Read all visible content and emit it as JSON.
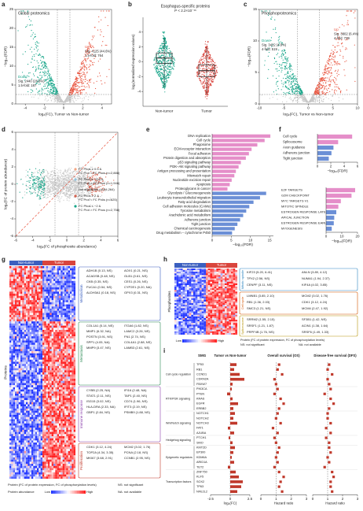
{
  "panels": {
    "a": {
      "label": "a",
      "title": "Global proteomics",
      "up": "Up",
      "up_sig": "Sig. 4125 (44.6%)",
      "up_fold": "1.5-fold: 764",
      "down": "Down",
      "down_sig": "Sig. 2440 (26.8%)",
      "down_fold": "1.5-fold: 187",
      "xlabel": "log₂(FC), Tumor vs Non-tumor",
      "ylabel": "−log₁₀(FDR)",
      "xlim": [
        -5,
        5
      ],
      "xticks": [
        -4,
        -2,
        0,
        2,
        4
      ],
      "ylim": [
        0,
        25
      ],
      "yticks": [
        0,
        5,
        10,
        15,
        20,
        25
      ]
    },
    "b": {
      "label": "b",
      "title": "Esophagus-specific proteins",
      "pvalue": "P < 2.2×10⁻¹⁶",
      "ylabel": "log₂(normalized expression values)",
      "categories": [
        "Non-tumor",
        "Tumor"
      ],
      "colors": [
        "#17a589",
        "#d9453d"
      ],
      "ylim": [
        -6,
        6
      ],
      "yticks": [
        -4,
        -2,
        0,
        2,
        4
      ],
      "boxes": [
        {
          "min": -3.4,
          "q1": -0.2,
          "median": 0.5,
          "q3": 1.2,
          "max": 3.2
        },
        {
          "min": -4.4,
          "q1": -2,
          "median": -1.2,
          "q3": -0.4,
          "max": 2
        }
      ]
    },
    "c": {
      "label": "c",
      "title": "Phosphoproteomics",
      "up": "Up",
      "up_sig": "Sig. 3802 (6.4%)",
      "up_fold": "4-fold: 739",
      "down": "Down",
      "down_sig": "Sig. 3422 (4.8%)",
      "down_fold": "4-fold: 519",
      "xlabel": "log₂(FC), Tumor vs Non-tumor",
      "ylabel": "−log₁₀(FDR)",
      "xlim": [
        -10,
        10
      ],
      "xticks": [
        -10,
        -5,
        0,
        5,
        10
      ],
      "ylim": [
        0,
        15
      ],
      "yticks": [
        0,
        5,
        10,
        15
      ]
    },
    "d": {
      "label": "d",
      "xlabel": "log₂(FC of phosphosite abundance)",
      "ylabel": "log₂(FC of protein abundance)",
      "xlim": [
        -6,
        6
      ],
      "xticks": [
        -6,
        -4,
        -2,
        0,
        2,
        4,
        6
      ],
      "ylim": [
        -6,
        6
      ],
      "yticks": [
        -6,
        -4,
        -2,
        0,
        2,
        4,
        6
      ],
      "legend": [
        {
          "color": "#f4a582",
          "lines": [
            "FC Phos ≥ 0.5 &",
            "FC Prot < FC Phos (n=2,888)"
          ]
        },
        {
          "color": "#92c5de",
          "lines": [
            "FC Phos ≤ −0.5 &",
            "FC Prot > FC Phos (n=1,946)"
          ]
        },
        {
          "color": "#cccccc",
          "lines": [
            "Not significant (n=54,264)"
          ]
        },
        {
          "color": "#d6604d",
          "lines": [
            "FC Phos ≥ 2 &",
            "FC Prot < FC Phos (n=625)"
          ]
        },
        {
          "color": "#17a589",
          "lines": [
            "FC Phos ≤ −2 &",
            "FC Prot > FC Phos (n=2,758)"
          ]
        }
      ]
    },
    "e": {
      "label": "e",
      "xlabel": "−log₁₀(FDR)",
      "xlim": [
        0,
        16
      ],
      "xticks": [
        0,
        5,
        10,
        15
      ],
      "groups": [
        {
          "color": "#e58ec9",
          "categories": [
            "DNA replication",
            "Cell cycle",
            "Phagosome",
            "ECM-receptor interaction",
            "Focal adhesion",
            "Protein digestion and absorption",
            "p53 signaling pathway",
            "PI3K–Akt signaling pathway",
            "Antigen processing and presentation",
            "Mismatch repair",
            "Nucleotide excision repair",
            "Apoptosis",
            "Proteoglycans in cancer"
          ],
          "values": [
            15.2,
            13.7,
            11.8,
            10.3,
            9.6,
            8.8,
            7.5,
            6.9,
            6.2,
            5.8,
            5.1,
            4.6,
            4.0
          ]
        },
        {
          "color": "#6b8fd6",
          "categories": [
            "Glycolysis / Gluconeogenesis",
            "Leukocyte transendothelial migration",
            "Fatty acid degradation",
            "Cell adhesion molecules (CAMs)",
            "Tyrosine metabolism",
            "Arachidonic acid metabolism",
            "Adherens junction",
            "Tight junction",
            "Chemical carcinogenesis",
            "Drug metabolism − cytochrome P450"
          ],
          "values": [
            14.1,
            12.5,
            10.8,
            9.7,
            8.9,
            8.1,
            7.3,
            6.6,
            5.9,
            5.2
          ]
        }
      ]
    },
    "f": {
      "label": "f",
      "top": {
        "xlabel": "−log₁₀(FDR)",
        "xlim": [
          0,
          6
        ],
        "xticks": [
          0,
          2,
          4,
          6
        ],
        "groups": [
          {
            "color": "#e58ec9",
            "categories": [
              "Cell cycle",
              "Spliceosome"
            ],
            "values": [
              5.2,
              3.1
            ]
          },
          {
            "color": "#6b8fd6",
            "categories": [
              "Axon guidance",
              "Adherens junction",
              "Tight junction"
            ],
            "values": [
              2.4,
              2.1,
              1.7
            ]
          }
        ]
      },
      "bottom": {
        "xlabel": "−log₁₀(FDR)",
        "xlim": [
          0,
          20
        ],
        "xticks": [
          0,
          10,
          20
        ],
        "groups": [
          {
            "color": "#e58ec9",
            "categories": [
              "E2F TARGETS",
              "G2M CHECKPOINT",
              "MYC TARGETS V1",
              "MITOTIC SPINDLE"
            ],
            "values": [
              18.5,
              16.2,
              9.4,
              7.8
            ]
          },
          {
            "color": "#6b8fd6",
            "categories": [
              "ESTROGEN RESPONSE LATE",
              "APICAL JUNCTION",
              "ESTROGEN RESPONSE EARLY",
              "MYOGENESIS"
            ],
            "values": [
              6.5,
              5.2,
              4.9,
              3.6
            ]
          }
        ]
      }
    },
    "g": {
      "label": "g",
      "header": [
        "Non-tumor",
        "Tumor"
      ],
      "ylabel": "Proteins",
      "groups": [
        {
          "name": "Metabolism",
          "color": "#3b5fbf",
          "genes": [
            "ADH1B (0.13, NS)",
            "AOX1 (0.21, NS)",
            "ACADSB (0.48, NS)",
            "GLB1 (0.61, NS)",
            "CKB (0.35, NS)",
            "CES1 (0.26, NS)",
            "FUCA1 (0.54, NS)",
            "CYP2E1 (0.20, NA)",
            "ALDH3A1 (0.18, NS)",
            "GPX3 (0.31, NS)"
          ]
        },
        {
          "name": "Metastasis",
          "color": "#2e8b57",
          "genes": [
            "COL1A1 (5.14, NS)",
            "ITGA6 (1.82, NS)",
            "MMP1 (6.32, NA)",
            "LAMC2 (3.26, NS)",
            "POSTN (3.91, NS)",
            "FN1 (2.74, NS)",
            "SPP1 (4.05, NA)",
            "COL4A1 (2.88, NS)",
            "MMP9 (3.47, NS)",
            "LAMB3 (2.61, NS)"
          ]
        },
        {
          "name": "Immune response",
          "color": "#8e44ad",
          "genes": [
            "CYBB (2.25, NA)",
            "IFI16 (2.48, NA)",
            "STAT1 (2.11, NS)",
            "TAP1 (2.40, NS)",
            "ISG15 (3.02, NS)",
            "CD74 (1.96, NS)",
            "HLA-DRA (2.33, NA)",
            "IFIT3 (2.19, NS)",
            "GBP1 (2.84, NS)",
            "PSMB9 (1.88, NS)"
          ]
        },
        {
          "name": "Proliferation",
          "color": "#c0392b",
          "genes": [
            "CDK1 (3.12, 4.24)",
            "MCM2 (3.02, 1.76)",
            "TOP2A (4.34, 3.35)",
            "PCNA (2.18, NS)",
            "MKI67 (3.68, 2.91)",
            "CCNB1 (2.95, NS)"
          ]
        }
      ],
      "legend_protein": "Protein (FC of protein expression, FC of phosphorylation levels)",
      "legend_ns": "NS: not significant",
      "legend_abundance": "Protein abundance",
      "low": "Low",
      "high": "High",
      "legend_na": "NA: not available"
    },
    "h": {
      "label": "h",
      "header": [
        "Non-tumor",
        "Tumor"
      ],
      "ylabel": "Phosphosites",
      "groups": [
        {
          "name": "Mitotic spindle",
          "color": "#2e86c1",
          "genes": [
            "KIF23 (5.20, 6.41)",
            "ANLN (3.89, 4.12)",
            "TPX2 (2.56, NS)",
            "NUMA1 (1.94, 2.37)",
            "CENPF (3.11, NS)",
            "KIF4A (4.02, 3.85)"
          ]
        },
        {
          "name": "Cell cycle",
          "color": "#d35400",
          "genes": [
            "LMNB1 (3.85, 2.10)",
            "MCM2 (3.02, 1.76)",
            "RB1 (1.36, 2.03)",
            "CDK1 (3.12, 4.24)",
            "SMC3 (1.21, NS)",
            "MCM4 (2.47, 1.92)"
          ]
        },
        {
          "name": "Spliceosome",
          "color": "#b7950b",
          "genes": [
            "SRRM2 (1.55, 2.15)",
            "SF3B1 (1.42, NS)",
            "SRSF1 (1.21, 1.87)",
            "ACIN1 (1.38, 1.64)",
            "PRPF4B (1.76, NS)",
            "SRSF6 (1.49, 1.33)"
          ]
        }
      ],
      "low": "Low",
      "high": "High",
      "legend_protein": "Protein (FC of protein expression, FC of phosphorylation levels)",
      "legend_ns": "NS: not significant",
      "legend_na": "NA: not available"
    },
    "i": {
      "label": "i",
      "smg": "SMG",
      "fc": {
        "title": "Tumor vs Non-tumor",
        "xlabel": "log₂(FC)",
        "xlim": [
          -2.5,
          2.5
        ],
        "xticks": [
          -2.5,
          0,
          2.5
        ]
      },
      "os": {
        "title": "Overall survival (OS)",
        "xlabel": "Hazard ratio",
        "xlim": [
          0,
          3
        ],
        "xticks": [
          0,
          1,
          2,
          3
        ],
        "ref": 1
      },
      "dfs": {
        "title": "Disease-free survival (DFS)",
        "xlabel": "Hazard ratio",
        "xlim": [
          0,
          3
        ],
        "xticks": [
          0,
          1,
          2,
          3
        ],
        "ref": 1
      },
      "groups": [
        {
          "name": "Cell cycle regulation",
          "genes": [
            {
              "gene": "TP53",
              "fc": 0.8,
              "os": 1.2,
              "dfs": 1.1
            },
            {
              "gene": "RB1",
              "fc": 0.5,
              "os": 1.1,
              "dfs": 1.0
            },
            {
              "gene": "CCND1",
              "fc": 1.2,
              "os": 1.4,
              "dfs": 1.3
            },
            {
              "gene": "CDKN2A",
              "fc": 1.8,
              "os": 0.9,
              "dfs": 1.0
            },
            {
              "gene": "FBXW7",
              "fc": 0.3,
              "os": 1.0,
              "dfs": 1.1
            }
          ]
        },
        {
          "name": "RTK/PI3K signaling",
          "genes": [
            {
              "gene": "PIK3CA",
              "fc": 0.2,
              "os": 1.1,
              "dfs": 1.2
            },
            {
              "gene": "PTEN",
              "fc": -0.4,
              "os": 0.9,
              "dfs": 0.8
            },
            {
              "gene": "KRAS",
              "fc": 0.3,
              "os": 1.3,
              "dfs": 1.2
            },
            {
              "gene": "EGFR",
              "fc": 1.0,
              "os": 1.5,
              "dfs": 1.4
            },
            {
              "gene": "ERBB2",
              "fc": 0.4,
              "os": 1.2,
              "dfs": 1.1
            }
          ]
        },
        {
          "name": "Wnt/Notch signaling",
          "genes": [
            {
              "gene": "NOTCH1",
              "fc": 0.6,
              "os": 1.1,
              "dfs": 1.0
            },
            {
              "gene": "NOTCH2",
              "fc": 0.4,
              "os": 1.0,
              "dfs": 1.0
            },
            {
              "gene": "NOTCH3",
              "fc": 0.9,
              "os": 1.3,
              "dfs": 1.2
            },
            {
              "gene": "FAT1",
              "fc": -0.3,
              "os": 0.8,
              "dfs": 0.9
            },
            {
              "gene": "AJUBA",
              "fc": 0.5,
              "os": 1.1,
              "dfs": 1.2
            }
          ]
        },
        {
          "name": "Hedgehog signaling",
          "genes": [
            {
              "gene": "PTCH1",
              "fc": -0.2,
              "os": 0.9,
              "dfs": 0.9
            },
            {
              "gene": "SMO",
              "fc": 0.3,
              "os": 1.0,
              "dfs": 1.1
            }
          ]
        },
        {
          "name": "Epigenetic regulators",
          "genes": [
            {
              "gene": "KMT2D",
              "fc": 0.6,
              "os": 1.2,
              "dfs": 1.1
            },
            {
              "gene": "EP300",
              "fc": 0.4,
              "os": 1.1,
              "dfs": 1.2
            },
            {
              "gene": "KDM6A",
              "fc": 0.2,
              "os": 1.0,
              "dfs": 1.0
            },
            {
              "gene": "ARID1A",
              "fc": 0.5,
              "os": 1.1,
              "dfs": 1.1
            },
            {
              "gene": "TET2",
              "fc": -0.3,
              "os": 0.9,
              "dfs": 0.8
            }
          ]
        },
        {
          "name": "Transcription factors",
          "genes": [
            {
              "gene": "ZNF750",
              "fc": 0.7,
              "os": 1.2,
              "dfs": 1.3
            },
            {
              "gene": "KLF5",
              "fc": 1.1,
              "os": 1.5,
              "dfs": 1.4
            },
            {
              "gene": "SOX2",
              "fc": 1.6,
              "os": 1.3,
              "dfs": 1.2
            },
            {
              "gene": "TP63",
              "fc": 1.4,
              "os": 1.2,
              "dfs": 1.2
            },
            {
              "gene": "NFE2L2",
              "fc": 0.9,
              "os": 1.4,
              "dfs": 1.3
            }
          ]
        }
      ]
    }
  }
}
